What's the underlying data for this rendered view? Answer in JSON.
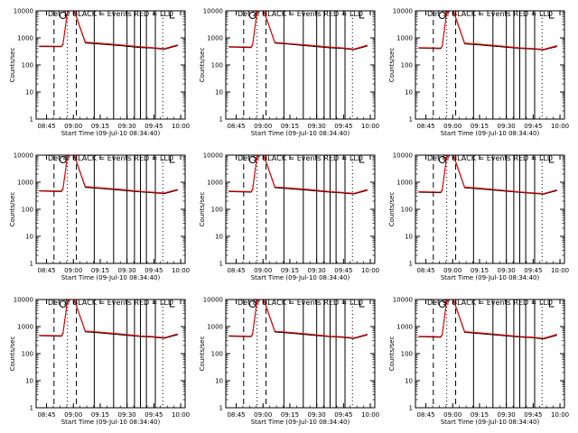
{
  "figure": {
    "background": "#ffffff",
    "trace_colors": {
      "events": "#000000",
      "lld": "#ff0000"
    }
  },
  "chart_data": [
    {
      "type": "line",
      "title": "Det 1r BLACK = Events RED = LLD",
      "xlabel": "Start Time (09-Jul-10 08:34:40)",
      "ylabel": "Counts/sec",
      "x_tick_labels": [
        "08:45",
        "09:00",
        "09:15",
        "09:30",
        "09:45",
        "10:00"
      ],
      "y_tick_labels": [
        "1",
        "10",
        "100",
        "1000",
        "10000"
      ],
      "ylim": [
        1,
        10000
      ],
      "yscale": "log",
      "series": [
        {
          "name": "Events",
          "color": "#000000",
          "x": [
            0.02,
            0.17,
            0.18,
            0.21,
            0.25,
            0.33,
            0.42,
            0.56,
            0.7,
            0.78,
            0.86,
            0.95
          ],
          "y": [
            480,
            470,
            560,
            9000,
            12000,
            650,
            600,
            520,
            440,
            420,
            380,
            520
          ]
        },
        {
          "name": "LLD",
          "color": "#ff0000",
          "x": [
            0.02,
            0.17,
            0.18,
            0.21,
            0.25,
            0.33,
            0.42,
            0.56,
            0.7,
            0.78,
            0.86,
            0.95
          ],
          "y": [
            500,
            490,
            600,
            9500,
            12500,
            700,
            640,
            560,
            470,
            440,
            400,
            560
          ]
        }
      ]
    },
    {
      "type": "line",
      "title": "Det 2r BLACK = Events RED = LLD",
      "xlabel": "Start Time (09-Jul-10 08:34:40)",
      "ylabel": "Counts/sec",
      "x_tick_labels": [
        "08:45",
        "09:00",
        "09:15",
        "09:30",
        "09:45",
        "10:00"
      ],
      "y_tick_labels": [
        "1",
        "10",
        "100",
        "1000",
        "10000"
      ],
      "ylim": [
        1,
        10000
      ],
      "yscale": "log",
      "series": [
        {
          "name": "Events",
          "color": "#000000",
          "x": [
            0.02,
            0.17,
            0.18,
            0.21,
            0.25,
            0.33,
            0.42,
            0.56,
            0.7,
            0.78,
            0.86,
            0.95
          ],
          "y": [
            460,
            440,
            540,
            8800,
            12000,
            640,
            590,
            500,
            430,
            410,
            370,
            500
          ]
        },
        {
          "name": "LLD",
          "color": "#ff0000",
          "x": [
            0.02,
            0.17,
            0.18,
            0.21,
            0.25,
            0.33,
            0.42,
            0.56,
            0.7,
            0.78,
            0.86,
            0.95
          ],
          "y": [
            480,
            460,
            580,
            9200,
            12400,
            680,
            620,
            540,
            460,
            430,
            390,
            540
          ]
        }
      ]
    },
    {
      "type": "line",
      "title": "Det 3r BLACK = Events RED = LLD",
      "xlabel": "Start Time (09-Jul-10 08:34:40)",
      "ylabel": "Counts/sec",
      "x_tick_labels": [
        "08:45",
        "09:00",
        "09:15",
        "09:30",
        "09:45",
        "10:00"
      ],
      "y_tick_labels": [
        "1",
        "10",
        "100",
        "1000",
        "10000"
      ],
      "ylim": [
        1,
        10000
      ],
      "yscale": "log",
      "series": [
        {
          "name": "Events",
          "color": "#000000",
          "x": [
            0.02,
            0.17,
            0.18,
            0.21,
            0.25,
            0.33,
            0.42,
            0.56,
            0.7,
            0.78,
            0.86,
            0.95
          ],
          "y": [
            420,
            400,
            500,
            8500,
            11500,
            600,
            560,
            480,
            410,
            390,
            360,
            480
          ]
        },
        {
          "name": "LLD",
          "color": "#ff0000",
          "x": [
            0.02,
            0.17,
            0.18,
            0.21,
            0.25,
            0.33,
            0.42,
            0.56,
            0.7,
            0.78,
            0.86,
            0.95
          ],
          "y": [
            440,
            420,
            530,
            9000,
            12000,
            640,
            600,
            510,
            430,
            410,
            380,
            520
          ]
        }
      ]
    },
    {
      "type": "line",
      "title": "Det 4r BLACK = Events RED = LLD",
      "xlabel": "Start Time (09-Jul-10 08:34:40)",
      "ylabel": "Counts/sec",
      "x_tick_labels": [
        "08:45",
        "09:00",
        "09:15",
        "09:30",
        "09:45",
        "10:00"
      ],
      "y_tick_labels": [
        "1",
        "10",
        "100",
        "1000",
        "10000"
      ],
      "ylim": [
        1,
        10000
      ],
      "yscale": "log",
      "series": [
        {
          "name": "Events",
          "color": "#000000",
          "x": [
            0.02,
            0.17,
            0.18,
            0.21,
            0.25,
            0.33,
            0.42,
            0.56,
            0.7,
            0.78,
            0.86,
            0.95
          ],
          "y": [
            470,
            450,
            550,
            8900,
            12000,
            640,
            600,
            510,
            440,
            410,
            380,
            510
          ]
        },
        {
          "name": "LLD",
          "color": "#ff0000",
          "x": [
            0.02,
            0.17,
            0.18,
            0.21,
            0.25,
            0.33,
            0.42,
            0.56,
            0.7,
            0.78,
            0.86,
            0.95
          ],
          "y": [
            490,
            470,
            590,
            9300,
            12400,
            690,
            630,
            550,
            460,
            430,
            400,
            550
          ]
        }
      ]
    },
    {
      "type": "line",
      "title": "Det 5r BLACK = Events RED = LLD",
      "xlabel": "Start Time (09-Jul-10 08:34:40)",
      "ylabel": "Counts/sec",
      "x_tick_labels": [
        "08:45",
        "09:00",
        "09:15",
        "09:30",
        "09:45",
        "10:00"
      ],
      "y_tick_labels": [
        "1",
        "10",
        "100",
        "1000",
        "10000"
      ],
      "ylim": [
        1,
        10000
      ],
      "yscale": "log",
      "series": [
        {
          "name": "Events",
          "color": "#000000",
          "x": [
            0.02,
            0.17,
            0.18,
            0.21,
            0.25,
            0.33,
            0.42,
            0.56,
            0.7,
            0.78,
            0.86,
            0.95
          ],
          "y": [
            450,
            430,
            530,
            8700,
            11800,
            630,
            580,
            500,
            430,
            400,
            370,
            500
          ]
        },
        {
          "name": "LLD",
          "color": "#ff0000",
          "x": [
            0.02,
            0.17,
            0.18,
            0.21,
            0.25,
            0.33,
            0.42,
            0.56,
            0.7,
            0.78,
            0.86,
            0.95
          ],
          "y": [
            470,
            450,
            570,
            9100,
            12200,
            670,
            620,
            540,
            450,
            420,
            390,
            540
          ]
        }
      ]
    },
    {
      "type": "line",
      "title": "Det 6r BLACK = Events RED = LLD",
      "xlabel": "Start Time (09-Jul-10 08:34:40)",
      "ylabel": "Counts/sec",
      "x_tick_labels": [
        "08:45",
        "09:00",
        "09:15",
        "09:30",
        "09:45",
        "10:00"
      ],
      "y_tick_labels": [
        "1",
        "10",
        "100",
        "1000",
        "10000"
      ],
      "ylim": [
        1,
        10000
      ],
      "yscale": "log",
      "series": [
        {
          "name": "Events",
          "color": "#000000",
          "x": [
            0.02,
            0.17,
            0.18,
            0.21,
            0.25,
            0.33,
            0.42,
            0.56,
            0.7,
            0.78,
            0.86,
            0.95
          ],
          "y": [
            430,
            410,
            510,
            8600,
            11600,
            620,
            570,
            490,
            420,
            390,
            360,
            490
          ]
        },
        {
          "name": "LLD",
          "color": "#ff0000",
          "x": [
            0.02,
            0.17,
            0.18,
            0.21,
            0.25,
            0.33,
            0.42,
            0.56,
            0.7,
            0.78,
            0.86,
            0.95
          ],
          "y": [
            450,
            430,
            550,
            9000,
            12000,
            660,
            610,
            520,
            440,
            410,
            380,
            530
          ]
        }
      ]
    },
    {
      "type": "line",
      "title": "Det 7r BLACK = Events RED = LLD",
      "xlabel": "Start Time (09-Jul-10 08:34:40)",
      "ylabel": "Counts/sec",
      "x_tick_labels": [
        "08:45",
        "09:00",
        "09:15",
        "09:30",
        "09:45",
        "10:00"
      ],
      "y_tick_labels": [
        "1",
        "10",
        "100",
        "1000",
        "10000"
      ],
      "ylim": [
        1,
        10000
      ],
      "yscale": "log",
      "series": [
        {
          "name": "Events",
          "color": "#000000",
          "x": [
            0.02,
            0.17,
            0.18,
            0.21,
            0.25,
            0.33,
            0.42,
            0.56,
            0.7,
            0.78,
            0.86,
            0.95
          ],
          "y": [
            460,
            440,
            540,
            8800,
            11900,
            640,
            590,
            500,
            430,
            410,
            370,
            500
          ]
        },
        {
          "name": "LLD",
          "color": "#ff0000",
          "x": [
            0.02,
            0.17,
            0.18,
            0.21,
            0.25,
            0.33,
            0.42,
            0.56,
            0.7,
            0.78,
            0.86,
            0.95
          ],
          "y": [
            480,
            460,
            580,
            9200,
            12300,
            680,
            630,
            540,
            450,
            430,
            390,
            540
          ]
        }
      ]
    },
    {
      "type": "line",
      "title": "Det 8r BLACK = Events RED = LLD",
      "xlabel": "Start Time (09-Jul-10 08:34:40)",
      "ylabel": "Counts/sec",
      "x_tick_labels": [
        "08:45",
        "09:00",
        "09:15",
        "09:30",
        "09:45",
        "10:00"
      ],
      "y_tick_labels": [
        "1",
        "10",
        "100",
        "1000",
        "10000"
      ],
      "ylim": [
        1,
        10000
      ],
      "yscale": "log",
      "series": [
        {
          "name": "Events",
          "color": "#000000",
          "x": [
            0.02,
            0.17,
            0.18,
            0.21,
            0.25,
            0.33,
            0.42,
            0.56,
            0.7,
            0.78,
            0.86,
            0.95
          ],
          "y": [
            440,
            420,
            520,
            8700,
            11700,
            630,
            580,
            490,
            420,
            400,
            360,
            490
          ]
        },
        {
          "name": "LLD",
          "color": "#ff0000",
          "x": [
            0.02,
            0.17,
            0.18,
            0.21,
            0.25,
            0.33,
            0.42,
            0.56,
            0.7,
            0.78,
            0.86,
            0.95
          ],
          "y": [
            460,
            440,
            560,
            9100,
            12100,
            670,
            620,
            530,
            440,
            420,
            380,
            530
          ]
        }
      ]
    },
    {
      "type": "line",
      "title": "Det 9r BLACK = Events RED = LLD",
      "xlabel": "Start Time (09-Jul-10 08:34:40)",
      "ylabel": "Counts/sec",
      "x_tick_labels": [
        "08:45",
        "09:00",
        "09:15",
        "09:30",
        "09:45",
        "10:00"
      ],
      "y_tick_labels": [
        "1",
        "10",
        "100",
        "1000",
        "10000"
      ],
      "ylim": [
        1,
        10000
      ],
      "yscale": "log",
      "series": [
        {
          "name": "Events",
          "color": "#000000",
          "x": [
            0.02,
            0.17,
            0.18,
            0.21,
            0.25,
            0.33,
            0.42,
            0.56,
            0.7,
            0.78,
            0.86,
            0.95
          ],
          "y": [
            420,
            400,
            500,
            8500,
            11500,
            610,
            560,
            480,
            410,
            390,
            350,
            480
          ]
        },
        {
          "name": "LLD",
          "color": "#ff0000",
          "x": [
            0.02,
            0.17,
            0.18,
            0.21,
            0.25,
            0.33,
            0.42,
            0.56,
            0.7,
            0.78,
            0.86,
            0.95
          ],
          "y": [
            440,
            420,
            540,
            8900,
            11900,
            650,
            600,
            510,
            430,
            410,
            370,
            520
          ]
        }
      ]
    }
  ],
  "annotations": {
    "dashed_vlines": [
      0.12,
      0.27
    ],
    "dotted_vlines": [
      0.21,
      0.85
    ],
    "solid_vlines": [
      0.39,
      0.52,
      0.61,
      0.66,
      0.7,
      0.74,
      0.8
    ],
    "marker_circle_x": 0.18,
    "marker_L_x": 0.9
  }
}
